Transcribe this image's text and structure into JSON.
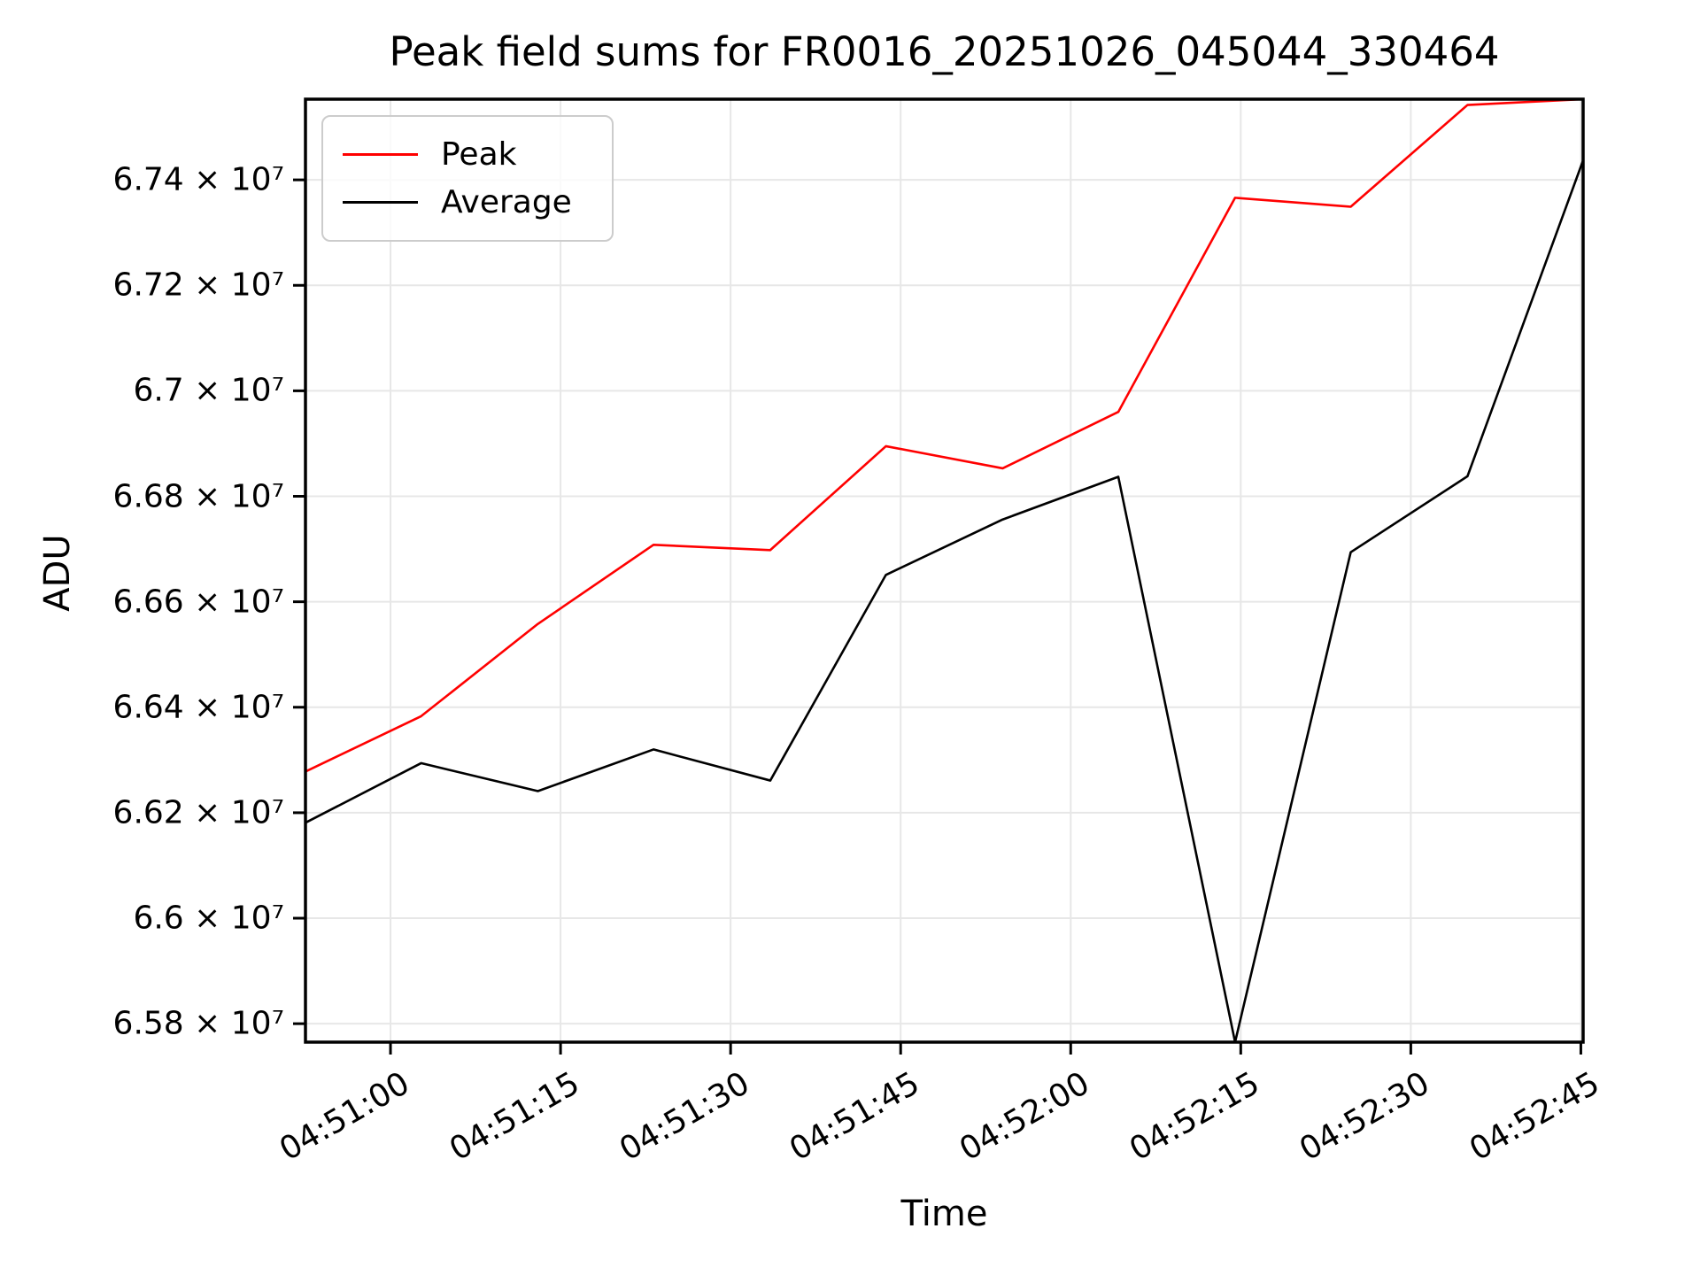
{
  "title": "Peak field sums for FR0016_20251026_045044_330464",
  "legend": {
    "items": [
      {
        "label": "Peak",
        "color": "#ff0000"
      },
      {
        "label": "Average",
        "color": "#000000"
      }
    ]
  },
  "colors": {
    "peak_line": "#ff0000",
    "average_line": "#000000",
    "grid": "#e7e7e7",
    "spine": "#000000",
    "background": "#ffffff"
  },
  "chart_data": {
    "type": "line",
    "title": "Peak field sums for FR0016_20251026_045044_330464",
    "xlabel": "Time",
    "ylabel": "ADU",
    "grid": true,
    "legend_position": "upper left",
    "xlim_seconds_after_0450": [
      52.5,
      165.2
    ],
    "ylim": [
      65765000,
      67553000
    ],
    "x_ticks": {
      "seconds_after_0450": [
        60,
        75,
        90,
        105,
        120,
        135,
        150,
        165
      ],
      "labels": [
        "04:51:00",
        "04:51:15",
        "04:51:30",
        "04:51:45",
        "04:52:00",
        "04:52:15",
        "04:52:30",
        "04:52:45"
      ]
    },
    "y_ticks": {
      "values": [
        65800000,
        66000000,
        66200000,
        66400000,
        66600000,
        66800000,
        67000000,
        67200000,
        67400000
      ],
      "labels": [
        "6.58 × 10⁷",
        "6.6 × 10⁷",
        "6.62 × 10⁷",
        "6.64 × 10⁷",
        "6.66 × 10⁷",
        "6.68 × 10⁷",
        "6.7 × 10⁷",
        "6.72 × 10⁷",
        "6.74 × 10⁷"
      ]
    },
    "x_times": [
      "04:50:53",
      "04:51:03",
      "04:51:13",
      "04:51:23",
      "04:51:34",
      "04:51:44",
      "04:51:54",
      "04:52:04",
      "04:52:15",
      "04:52:25",
      "04:52:35",
      "04:52:45"
    ],
    "x_seconds_after_0450": [
      52.5,
      62.7,
      73.0,
      83.2,
      93.5,
      103.7,
      114.0,
      124.2,
      134.5,
      144.7,
      155.0,
      165.2
    ],
    "series": [
      {
        "name": "Peak",
        "color": "#ff0000",
        "values": [
          66278000,
          66383000,
          66558000,
          66708000,
          66698000,
          66895000,
          66853000,
          66960000,
          67366000,
          67349000,
          67542000,
          67553000
        ]
      },
      {
        "name": "Average",
        "color": "#000000",
        "values": [
          66181000,
          66294000,
          66241000,
          66320000,
          66261000,
          66651000,
          66756000,
          66837000,
          65765000,
          66694000,
          66838000,
          67437000
        ]
      }
    ]
  }
}
